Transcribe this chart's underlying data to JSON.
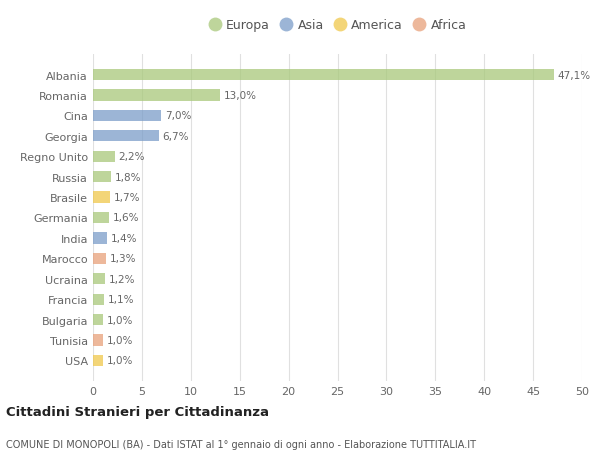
{
  "countries": [
    "Albania",
    "Romania",
    "Cina",
    "Georgia",
    "Regno Unito",
    "Russia",
    "Brasile",
    "Germania",
    "India",
    "Marocco",
    "Ucraina",
    "Francia",
    "Bulgaria",
    "Tunisia",
    "USA"
  ],
  "values": [
    47.1,
    13.0,
    7.0,
    6.7,
    2.2,
    1.8,
    1.7,
    1.6,
    1.4,
    1.3,
    1.2,
    1.1,
    1.0,
    1.0,
    1.0
  ],
  "labels": [
    "47,1%",
    "13,0%",
    "7,0%",
    "6,7%",
    "2,2%",
    "1,8%",
    "1,7%",
    "1,6%",
    "1,4%",
    "1,3%",
    "1,2%",
    "1,1%",
    "1,0%",
    "1,0%",
    "1,0%"
  ],
  "continents": [
    "Europa",
    "Europa",
    "Asia",
    "Asia",
    "Europa",
    "Europa",
    "America",
    "Europa",
    "Asia",
    "Africa",
    "Europa",
    "Europa",
    "Europa",
    "Africa",
    "America"
  ],
  "colors": {
    "Europa": "#a8c87a",
    "Asia": "#7b9dc9",
    "America": "#f0c84b",
    "Africa": "#e8a07a"
  },
  "legend_order": [
    "Europa",
    "Asia",
    "America",
    "Africa"
  ],
  "legend_colors": {
    "Europa": "#a8c87a",
    "Asia": "#7b9dc9",
    "America": "#f0c84b",
    "Africa": "#e8a07a"
  },
  "xlim": [
    0,
    50
  ],
  "xticks": [
    0,
    5,
    10,
    15,
    20,
    25,
    30,
    35,
    40,
    45,
    50
  ],
  "title": "Cittadini Stranieri per Cittadinanza",
  "subtitle": "COMUNE DI MONOPOLI (BA) - Dati ISTAT al 1° gennaio di ogni anno - Elaborazione TUTTITALIA.IT",
  "bg_color": "#ffffff",
  "grid_color": "#e0e0e0",
  "bar_alpha": 0.75,
  "label_fontsize": 7.5,
  "ytick_fontsize": 8,
  "xtick_fontsize": 8
}
